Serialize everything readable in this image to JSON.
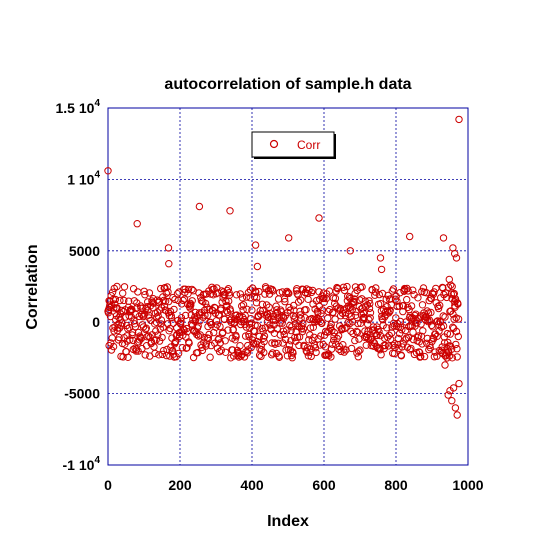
{
  "chart_data": {
    "type": "scatter",
    "title": "autocorrelation of sample.h data",
    "xlabel": "Index",
    "ylabel": "Correlation",
    "xlim": [
      0,
      1000
    ],
    "ylim": [
      -10000,
      15000
    ],
    "x_ticks": [
      0,
      200,
      400,
      600,
      800,
      1000
    ],
    "x_tick_labels": [
      "0",
      "200",
      "400",
      "600",
      "800",
      "1000"
    ],
    "y_ticks": [
      {
        "value": 15000,
        "base": "1.5 10",
        "exp": "4"
      },
      {
        "value": 10000,
        "base": "1 10",
        "exp": "4"
      },
      {
        "value": 5000,
        "base": "5000",
        "exp": ""
      },
      {
        "value": 0,
        "base": "0",
        "exp": ""
      },
      {
        "value": -5000,
        "base": "-5000",
        "exp": ""
      },
      {
        "value": -10000,
        "base": "-1 10",
        "exp": "4"
      }
    ],
    "grid": true,
    "grid_color": "#0000a0",
    "marker_color": "#cc0000",
    "legend_position": "top-center",
    "series": [
      {
        "name": "Corr",
        "x": [
          0,
          3,
          16,
          25,
          81,
          168,
          169,
          254,
          339,
          410,
          415,
          502,
          586,
          673,
          757,
          760,
          838,
          932,
          958,
          963,
          968,
          945,
          950,
          955,
          960,
          965,
          970,
          975,
          948,
          952,
          956,
          962,
          966,
          942,
          936,
          930
        ],
        "y": [
          10600,
          1500,
          1000,
          2500,
          6900,
          5200,
          4100,
          8100,
          7800,
          5400,
          3900,
          5900,
          7300,
          5000,
          4500,
          3700,
          6000,
          5900,
          5200,
          4800,
          4500,
          -5100,
          -4800,
          -5500,
          -4600,
          -6000,
          -6500,
          -4300,
          3000,
          2600,
          2500,
          2000,
          1500,
          -2500,
          -3000,
          -2200
        ],
        "points_generated": true,
        "scatter_count": 1000,
        "scatter_range": [
          -2500,
          2500
        ],
        "outlier_last": {
          "x": 975,
          "y": 14200
        }
      }
    ]
  }
}
